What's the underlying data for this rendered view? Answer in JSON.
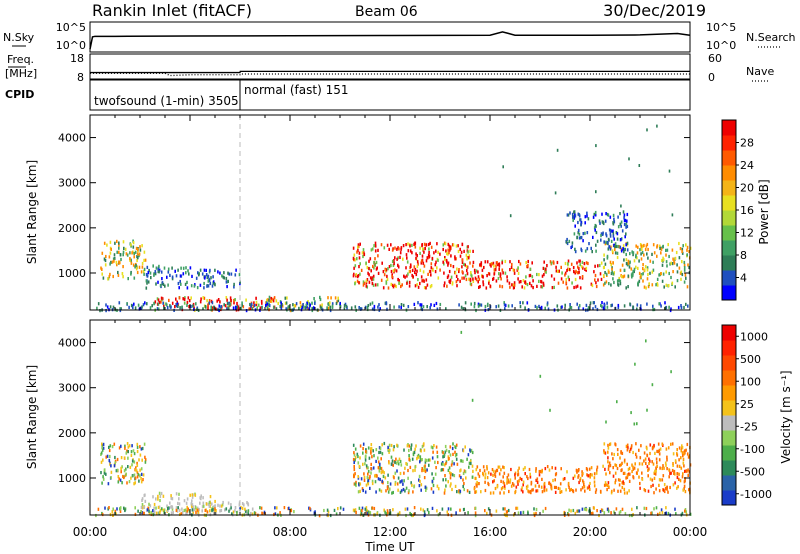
{
  "header": {
    "station": "Rankin Inlet (fitACF)",
    "beam": "Beam 06",
    "date": "30/Dec/2019"
  },
  "colors": {
    "frame": "#000000",
    "scatter_red": "#ee1111",
    "scatter_orange": "#ff8800",
    "scatter_yellow": "#e8e020",
    "scatter_green": "#3a9a50",
    "scatter_blue": "#2040c0",
    "ground_gray": "#b8b8b8"
  },
  "chart_data": [
    {
      "type": "line",
      "panel": "noise",
      "left_label": "N.Sky",
      "right_label": "N.Search",
      "left_ticks": [
        "10^5",
        "10^0"
      ],
      "right_ticks": [
        "10^5",
        "10^0"
      ],
      "x": [
        0,
        0.1,
        0.2,
        1,
        4,
        8,
        12,
        16,
        16.5,
        17,
        20,
        22,
        23.5,
        24
      ],
      "series": [
        {
          "style": "solid",
          "values": [
            0.5,
            2.7,
            2.8,
            2.8,
            2.85,
            2.9,
            2.95,
            3.0,
            3.6,
            3.0,
            3.0,
            3.05,
            3.3,
            3.0
          ]
        }
      ],
      "ylim": [
        0,
        5
      ]
    },
    {
      "type": "line",
      "panel": "frequency",
      "left_label": "Freq.\n[MHz]",
      "right_label": "Nave",
      "left_ticks": [
        "18",
        "8"
      ],
      "right_ticks": [
        "60",
        "0"
      ],
      "x": [
        0,
        2,
        3,
        3.2,
        4,
        6,
        6.01,
        12,
        18,
        24
      ],
      "series": [
        {
          "name": "freq",
          "style": "solid",
          "values": [
            10.8,
            10.8,
            10.8,
            10.8,
            10.8,
            10.8,
            11.3,
            11.3,
            11.3,
            11.3
          ]
        },
        {
          "name": "nave",
          "style": "dotted",
          "values": [
            15,
            15,
            15,
            9,
            11,
            11,
            13,
            13,
            13,
            13
          ]
        }
      ]
    },
    {
      "type": "table",
      "panel": "cpid",
      "label": "CPID",
      "segments": [
        {
          "start": 0,
          "end": 6,
          "text": "twofsound (1-min) 3505"
        },
        {
          "start": 6,
          "end": 24,
          "text": "normal (fast) 151"
        }
      ]
    },
    {
      "type": "heatmap",
      "panel": "power",
      "ylabel": "Slant Range [km]",
      "x_range": [
        0,
        24
      ],
      "ylim": [
        180,
        4500
      ],
      "yticks": [
        1000,
        2000,
        3000,
        4000
      ],
      "colorbar": {
        "label": "Power [dB]",
        "ticks": [
          "4",
          "8",
          "12",
          "16",
          "20",
          "24",
          "28"
        ],
        "colors": [
          "#0000ff",
          "#1f4fbf",
          "#2e7d57",
          "#3fa064",
          "#66c04a",
          "#b2d838",
          "#e8e020",
          "#f4b417",
          "#ff8c00",
          "#ff5a00",
          "#ff2200",
          "#ee0000"
        ]
      },
      "regions": [
        {
          "t0": 0.4,
          "t1": 2.2,
          "r0": 900,
          "r1": 1750,
          "level": "medium"
        },
        {
          "t0": 2.2,
          "t1": 4.0,
          "r0": 700,
          "r1": 1200,
          "level": "low"
        },
        {
          "t0": 2.5,
          "t1": 7.5,
          "r0": 200,
          "r1": 500,
          "level": "high"
        },
        {
          "t0": 4.0,
          "t1": 6.0,
          "r0": 700,
          "r1": 1100,
          "level": "low"
        },
        {
          "t0": 7.0,
          "t1": 10.0,
          "r0": 200,
          "r1": 500,
          "level": "medium"
        },
        {
          "t0": 10.5,
          "t1": 15.3,
          "r0": 700,
          "r1": 1700,
          "level": "high"
        },
        {
          "t0": 15.3,
          "t1": 20.5,
          "r0": 700,
          "r1": 1300,
          "level": "high"
        },
        {
          "t0": 20.5,
          "t1": 24.0,
          "r0": 700,
          "r1": 1700,
          "level": "medium"
        },
        {
          "t0": 19.0,
          "t1": 21.5,
          "r0": 1500,
          "r1": 2400,
          "level": "low"
        },
        {
          "t0": 0.2,
          "t1": 24.0,
          "r0": 200,
          "r1": 380,
          "level": "low"
        }
      ]
    },
    {
      "type": "heatmap",
      "panel": "velocity",
      "ylabel": "Slant Range [km]",
      "xlabel": "Time UT",
      "x_range": [
        0,
        24
      ],
      "xticks": [
        "00:00",
        "04:00",
        "08:00",
        "12:00",
        "16:00",
        "20:00",
        "00:00"
      ],
      "ylim": [
        180,
        4500
      ],
      "yticks": [
        1000,
        2000,
        3000,
        4000
      ],
      "colorbar": {
        "label": "Velocity [m s⁻¹]",
        "ticks": [
          "1000",
          "500",
          "100",
          "25",
          "-25",
          "-100",
          "-500",
          "-1000"
        ],
        "colors": [
          "#1a3cc8",
          "#2a63a8",
          "#2d8a5a",
          "#4dae4a",
          "#8ed05a",
          "#bdbdbd",
          "#f4c21a",
          "#ff9a00",
          "#ff7000",
          "#ff4800",
          "#ff2200",
          "#ee0000"
        ]
      },
      "regions": [
        {
          "t0": 0.4,
          "t1": 2.2,
          "r0": 900,
          "r1": 1800,
          "level": "mixed"
        },
        {
          "t0": 2.0,
          "t1": 5.0,
          "r0": 250,
          "r1": 700,
          "level": "ground"
        },
        {
          "t0": 4.0,
          "t1": 6.5,
          "r0": 200,
          "r1": 500,
          "level": "ground"
        },
        {
          "t0": 10.5,
          "t1": 15.3,
          "r0": 700,
          "r1": 1800,
          "level": "mixed"
        },
        {
          "t0": 15.3,
          "t1": 20.5,
          "r0": 700,
          "r1": 1300,
          "level": "negative"
        },
        {
          "t0": 20.5,
          "t1": 24.0,
          "r0": 700,
          "r1": 1800,
          "level": "negative"
        },
        {
          "t0": 0.2,
          "t1": 24.0,
          "r0": 200,
          "r1": 380,
          "level": "mixed"
        }
      ]
    }
  ]
}
